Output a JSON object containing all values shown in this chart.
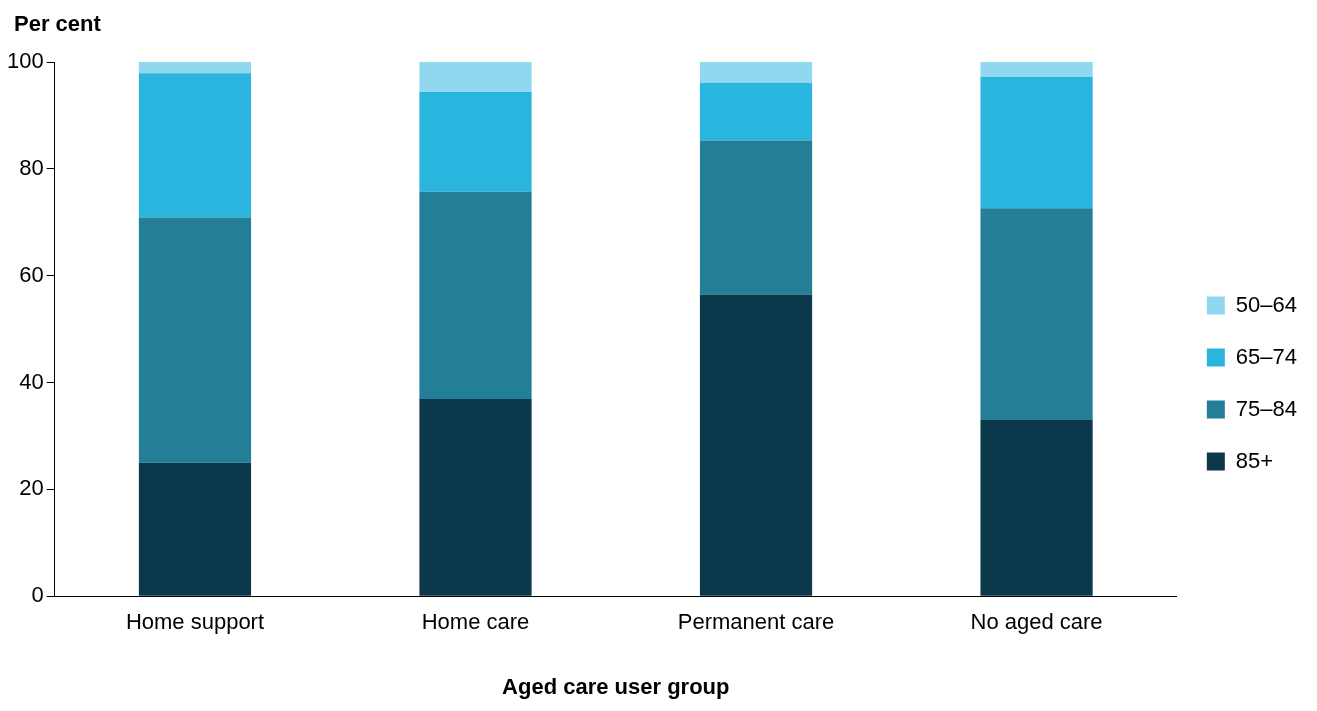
{
  "chart_data": {
    "type": "bar",
    "ylabel": "Per cent",
    "xlabel": "Aged care user group",
    "categories": [
      "Home support",
      "Home care",
      "Permanent care",
      "No aged care"
    ],
    "stacked": true,
    "series": [
      {
        "name": "85+",
        "color": "#0c384c",
        "values": [
          25.0,
          36.9,
          56.5,
          33.0
        ]
      },
      {
        "name": "75–84",
        "color": "#237f97",
        "values": [
          45.9,
          38.8,
          28.8,
          39.6
        ]
      },
      {
        "name": "65–74",
        "color": "#29b5de",
        "values": [
          27.0,
          18.7,
          10.8,
          24.6
        ]
      },
      {
        "name": "50–64",
        "color": "#8fd8f0",
        "values": [
          2.1,
          5.6,
          3.9,
          2.8
        ]
      }
    ],
    "ylim": [
      0,
      100
    ],
    "yticks": [
      0,
      20,
      40,
      60,
      80,
      100
    ],
    "grid": false,
    "legend": "right"
  }
}
